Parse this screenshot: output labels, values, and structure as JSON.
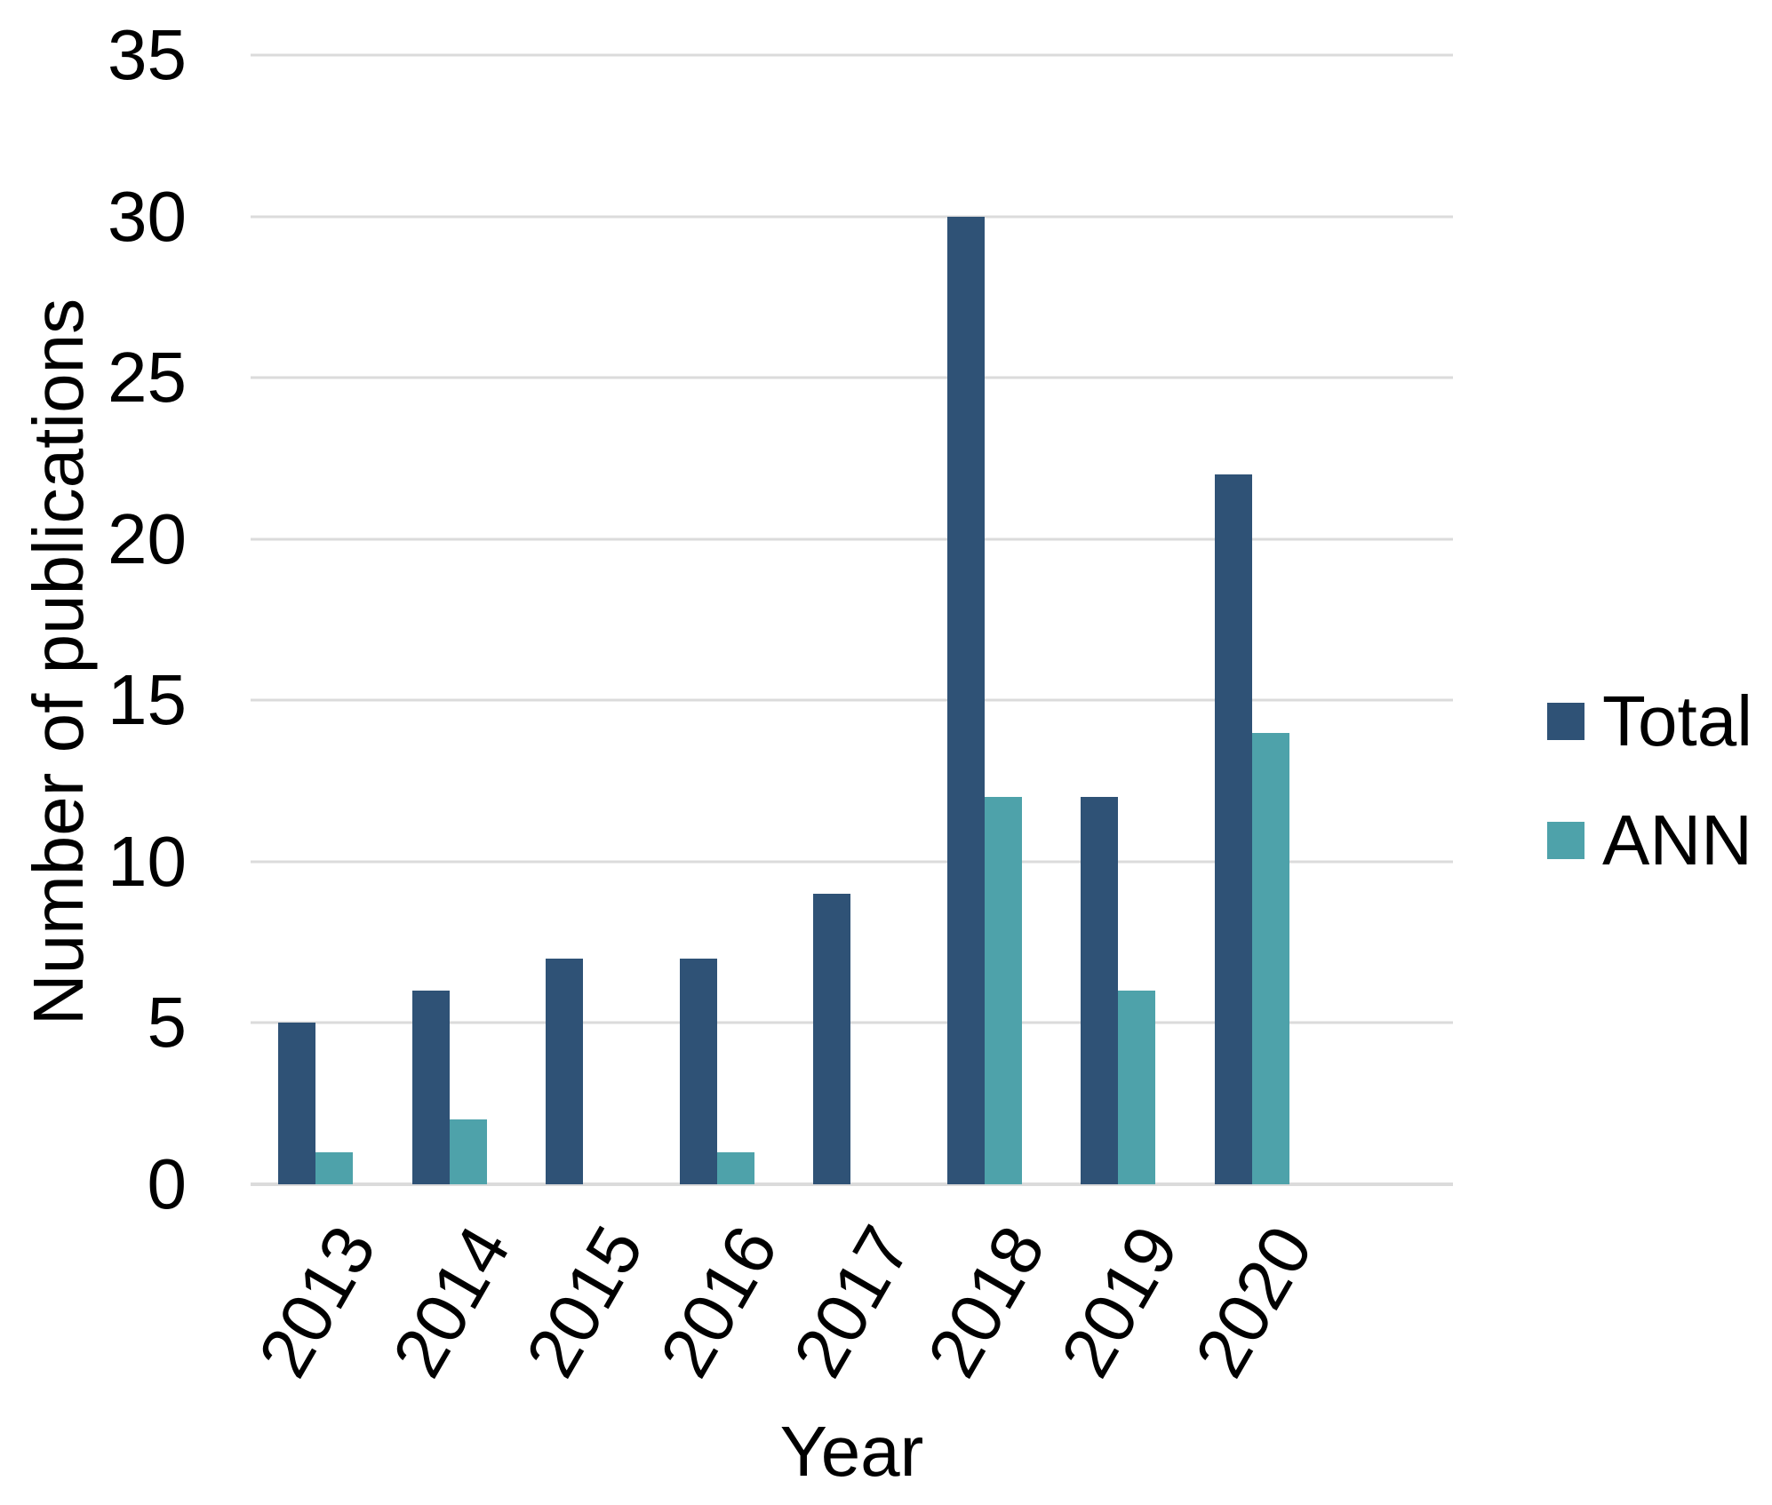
{
  "chart_data": {
    "type": "bar",
    "title": "",
    "categories": [
      "2013",
      "2014",
      "2015",
      "2016",
      "2017",
      "2018",
      "2019",
      "2020"
    ],
    "series": [
      {
        "name": "Total",
        "color": "#2F5276",
        "values": [
          5,
          6,
          7,
          7,
          9,
          30,
          12,
          22
        ]
      },
      {
        "name": "ANN",
        "color": "#4EA2AA",
        "values": [
          1,
          2,
          0,
          1,
          0,
          12,
          6,
          14
        ]
      }
    ],
    "xlabel": "Year",
    "ylabel": "Number of publications",
    "ylim": [
      0,
      35
    ],
    "yticks": [
      0,
      5,
      10,
      15,
      20,
      25,
      30,
      35
    ],
    "grid": true,
    "gridline_color": "#DBDBDB",
    "legend_position": "right",
    "text_color": "#000000"
  }
}
